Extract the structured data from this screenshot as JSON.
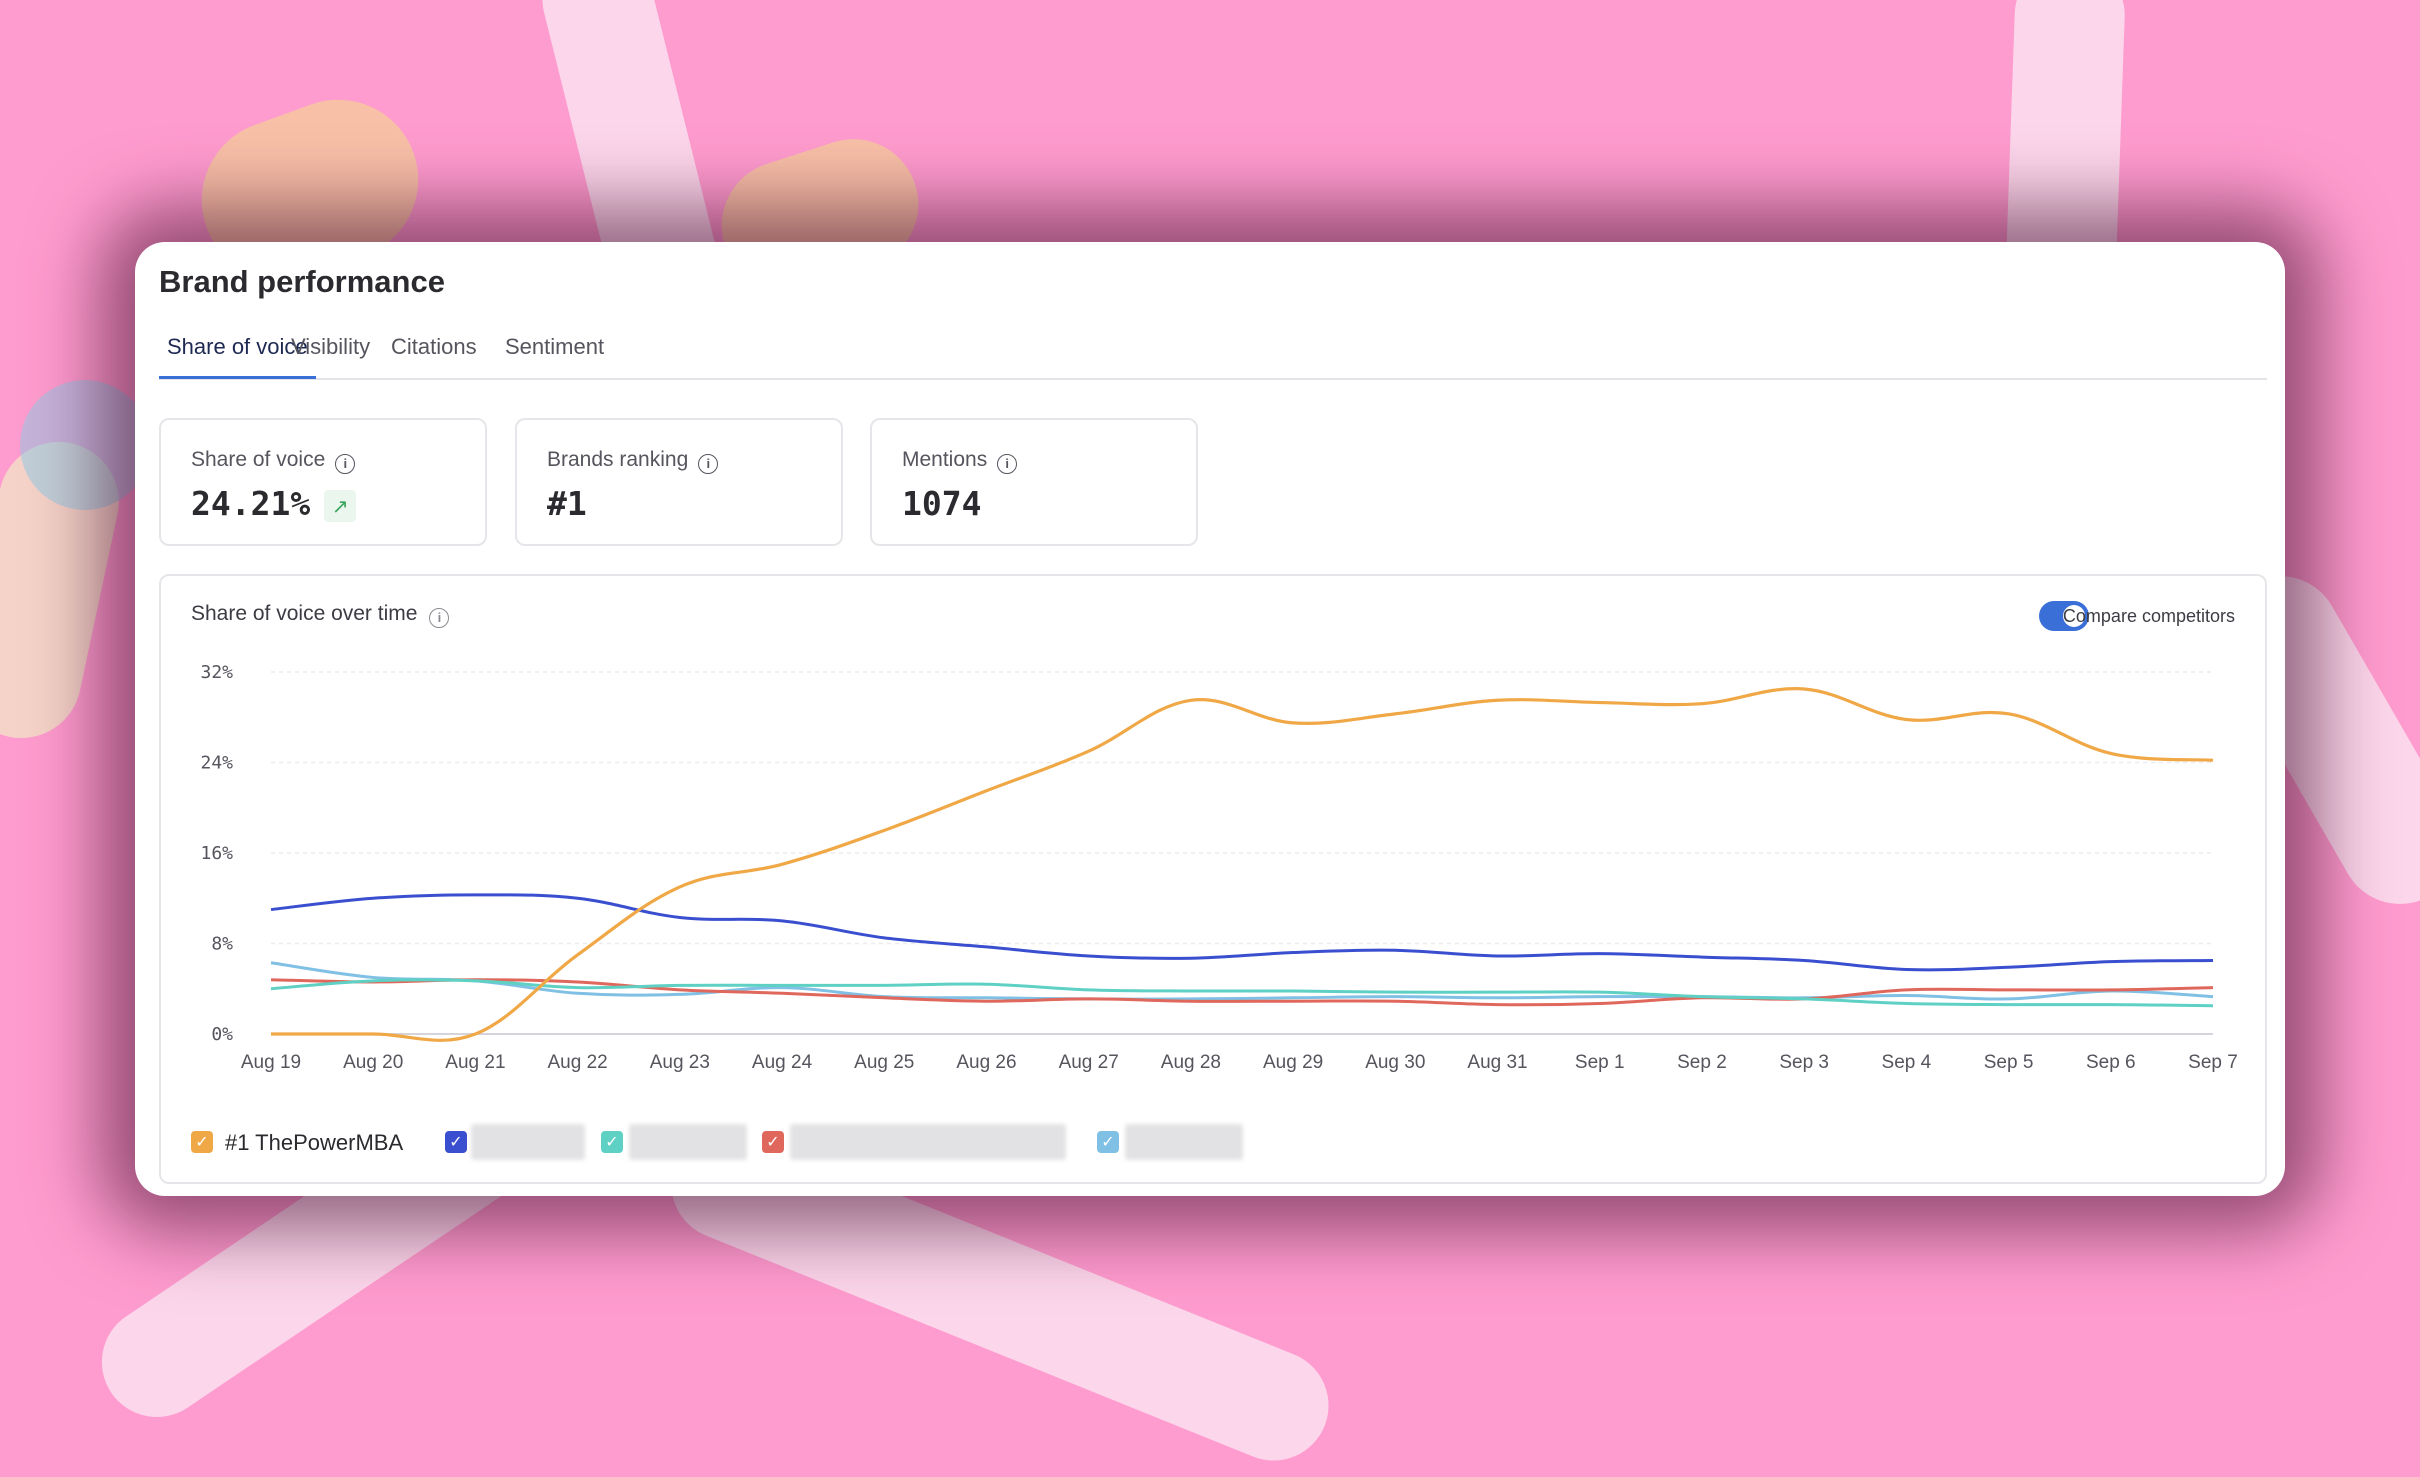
{
  "panel": {
    "title": "Brand performance",
    "tabs": [
      "Share of voice",
      "Visibility",
      "Citations",
      "Sentiment"
    ],
    "active_tab": "Share of voice"
  },
  "kpis": [
    {
      "label": "Share of voice",
      "value": "24.21%",
      "trend_icon": "arrow-up-right-icon"
    },
    {
      "label": "Brands ranking",
      "value": "#1"
    },
    {
      "label": "Mentions",
      "value": "1074"
    }
  ],
  "chart_section": {
    "title": "Share of voice over time",
    "toggle_label": "Compare competitors",
    "toggle_on": true
  },
  "legend": [
    {
      "label": "#1 ThePowerMBA",
      "color": "#f0a847",
      "checked": true
    },
    {
      "label": "",
      "color": "#3a4fcf",
      "checked": true,
      "redacted": true
    },
    {
      "label": "",
      "color": "#5ed0c4",
      "checked": true,
      "redacted": true
    },
    {
      "label": "",
      "color": "#e0675b",
      "checked": true,
      "redacted": true
    },
    {
      "label": "",
      "color": "#7fc0e4",
      "checked": true,
      "redacted": true
    }
  ],
  "chart_data": {
    "type": "line",
    "x": [
      "Aug 19",
      "Aug 20",
      "Aug 21",
      "Aug 22",
      "Aug 23",
      "Aug 24",
      "Aug 25",
      "Aug 26",
      "Aug 27",
      "Aug 28",
      "Aug 29",
      "Aug 30",
      "Aug 31",
      "Sep 1",
      "Sep 2",
      "Sep 3",
      "Sep 4",
      "Sep 5",
      "Sep 6",
      "Sep 7"
    ],
    "y_ticks": [
      "0%",
      "8%",
      "16%",
      "24%",
      "32%"
    ],
    "ylim": [
      0,
      32
    ],
    "grid": true,
    "series": [
      {
        "name": "#1 ThePowerMBA",
        "color": "#f0a847",
        "values": [
          0,
          0,
          0,
          7,
          13,
          15,
          18,
          21.5,
          25,
          29.5,
          27.5,
          28.3,
          29.5,
          29.3,
          29.2,
          30.5,
          27.8,
          28.3,
          24.8,
          24.2
        ]
      },
      {
        "color": "#3a4fcf",
        "values": [
          11,
          12,
          12.3,
          12,
          10.3,
          10,
          8.5,
          7.7,
          6.9,
          6.7,
          7.2,
          7.4,
          6.9,
          7.1,
          6.8,
          6.5,
          5.7,
          5.9,
          6.4,
          6.5
        ]
      },
      {
        "color": "#5ed0c4",
        "values": [
          4,
          4.7,
          4.7,
          4.1,
          4.3,
          4.3,
          4.3,
          4.4,
          3.9,
          3.8,
          3.8,
          3.7,
          3.7,
          3.7,
          3.3,
          3.1,
          2.7,
          2.6,
          2.6,
          2.5
        ]
      },
      {
        "color": "#e0675b",
        "values": [
          4.8,
          4.6,
          4.8,
          4.6,
          3.9,
          3.6,
          3.2,
          2.9,
          3.1,
          2.9,
          2.9,
          2.9,
          2.6,
          2.7,
          3.2,
          3.1,
          3.9,
          3.9,
          3.9,
          4.1
        ]
      },
      {
        "color": "#7fc0e4",
        "values": [
          6.3,
          5,
          4.7,
          3.6,
          3.5,
          4.1,
          3.3,
          3.2,
          3.1,
          3.1,
          3.2,
          3.3,
          3.2,
          3.3,
          3.3,
          3.2,
          3.4,
          3.1,
          3.8,
          3.3
        ]
      }
    ]
  }
}
